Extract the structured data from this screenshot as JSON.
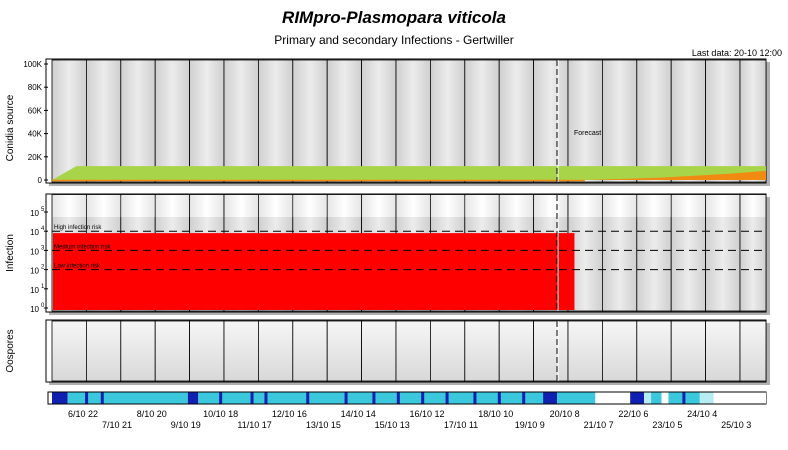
{
  "title": "RIMpro-Plasmopara viticola",
  "subtitle": "Primary and secondary Infections - Gertwiller",
  "last_data": "Last data: 20-10 12:00",
  "colors": {
    "green": "#a8d44a",
    "orange": "#f08a10",
    "red": "#ff0000",
    "cyan": "#3cc8dc",
    "blue": "#1020b0",
    "lightcyan": "#b8ecf4",
    "panel": "#d8d8d8"
  },
  "chart_data": [
    {
      "type": "area",
      "panel": "conidia",
      "ylabel": "Conidia source",
      "ylim": [
        0,
        100000
      ],
      "y_ticks": [
        0,
        20000,
        40000,
        60000,
        80000,
        100000
      ],
      "y_tick_labels": [
        "0",
        "20K",
        "40K",
        "60K",
        "80K",
        "100K"
      ],
      "forecast_label": "Forecast",
      "forecast_at_day": 14.5,
      "series": [
        {
          "role": "green",
          "x_days": [
            0,
            0.7,
            20.5
          ],
          "values": [
            0,
            12000,
            12000
          ]
        },
        {
          "role": "orange",
          "x_days": [
            15.3,
            17.5,
            19.5,
            20.5
          ],
          "values": [
            0,
            2000,
            5500,
            8000
          ]
        }
      ]
    },
    {
      "type": "area",
      "panel": "infection",
      "ylabel": "Infection",
      "scale": "log",
      "y_ticks": [
        0,
        1,
        2,
        3,
        4,
        5
      ],
      "y_tick_labels": [
        "10",
        "10",
        "10",
        "10",
        "10",
        "10"
      ],
      "y_tick_exponents": [
        "0",
        "1",
        "2",
        "3",
        "4",
        "5"
      ],
      "thresholds": [
        {
          "label": "High infection risk",
          "value_exp": 4
        },
        {
          "label": "Medium infection risk",
          "value_exp": 3
        },
        {
          "label": "Low infection risk",
          "value_exp": 2
        }
      ],
      "series": [
        {
          "role": "red",
          "x_days": [
            0,
            15.0
          ],
          "value_exp": 3.9
        }
      ]
    },
    {
      "type": "area",
      "panel": "oospores",
      "ylabel": "Oospores",
      "series": []
    }
  ],
  "x_axis": {
    "labels_top": [
      "6/10 22",
      "8/10 20",
      "10/10 18",
      "12/10 16",
      "14/10 14",
      "16/10 12",
      "18/10 10",
      "20/10 8",
      "22/10 6",
      "24/10 4"
    ],
    "labels_bottom": [
      "7/10 21",
      "9/10 19",
      "11/10 17",
      "13/10 15",
      "15/10 13",
      "17/10 11",
      "19/10 9",
      "21/10 7",
      "23/10 5",
      "25/10 3"
    ]
  },
  "weather_strip": [
    {
      "from": 0,
      "to": 0.45,
      "role": "blue"
    },
    {
      "from": 0.45,
      "to": 3.9,
      "role": "cyan"
    },
    {
      "from": 3.9,
      "to": 4.2,
      "role": "blue"
    },
    {
      "from": 4.2,
      "to": 14.1,
      "role": "cyan"
    },
    {
      "from": 14.1,
      "to": 14.5,
      "role": "blue"
    },
    {
      "from": 14.5,
      "to": 15.6,
      "role": "cyan"
    },
    {
      "from": 15.6,
      "to": 16.6,
      "role": "white"
    },
    {
      "from": 16.6,
      "to": 17.0,
      "role": "blue"
    },
    {
      "from": 17.0,
      "to": 17.2,
      "role": "lightcyan"
    },
    {
      "from": 17.2,
      "to": 17.5,
      "role": "cyan"
    },
    {
      "from": 17.5,
      "to": 17.7,
      "role": "white"
    },
    {
      "from": 17.7,
      "to": 18.6,
      "role": "cyan"
    },
    {
      "from": 18.6,
      "to": 19.0,
      "role": "lightcyan"
    },
    {
      "from": 19.0,
      "to": 20.5,
      "role": "white"
    }
  ],
  "weather_marks": [
    0.95,
    1.4,
    4.8,
    5.7,
    6.1,
    7.3,
    8.4,
    9.2,
    9.9,
    10.6,
    11.3,
    12.1,
    12.8,
    13.5,
    14.35,
    18.1
  ]
}
